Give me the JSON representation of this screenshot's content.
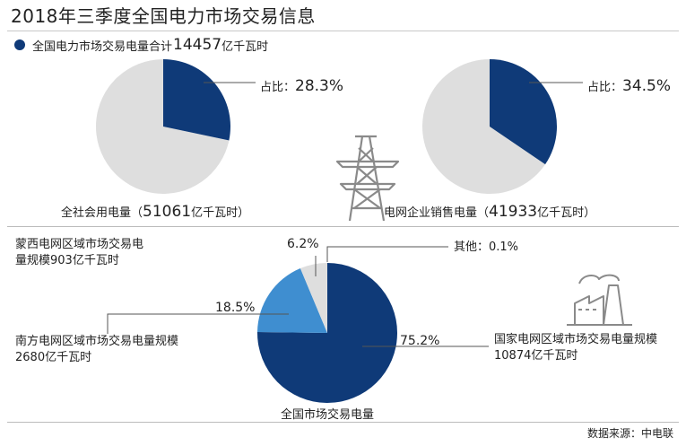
{
  "title": "2018年三季度全国电力市场交易信息",
  "legend": {
    "prefix": "全国电力市场交易电量合计",
    "total": "14457",
    "unit": "亿千瓦时",
    "color": "#0f3a78"
  },
  "colors": {
    "primary": "#0f3a78",
    "secondary": "#3f8ed0",
    "rest": "#dedede",
    "line": "#555555"
  },
  "chart_data": [
    {
      "type": "pie",
      "name": "全社会用电量",
      "total_label_prefix": "全社会用电量（",
      "total_value": "51061",
      "total_unit": "亿千瓦时）",
      "share_label": "占比：",
      "share_value": "28.3%",
      "slices": [
        {
          "label": "",
          "value": 28.3
        },
        {
          "label": "",
          "value": 71.7
        }
      ]
    },
    {
      "type": "pie",
      "name": "电网企业销售电量",
      "total_label_prefix": "电网企业销售电量（",
      "total_value": "41933",
      "total_unit": "亿千瓦时）",
      "share_label": "占比：",
      "share_value": "34.5%",
      "slices": [
        {
          "label": "",
          "value": 34.5
        },
        {
          "label": "",
          "value": 65.5
        }
      ]
    },
    {
      "type": "pie",
      "name": "全国市场交易电量",
      "center_label": "全国市场交易电量",
      "slices": [
        {
          "label_lines": [
            "国家电网区域市场交易电量规模",
            "10874亿千瓦时"
          ],
          "value": 75.2,
          "pct": "75.2%"
        },
        {
          "label_lines": [
            "南方电网区域市场交易电量规模",
            "2680亿千瓦时"
          ],
          "value": 18.5,
          "pct": "18.5%"
        },
        {
          "label_lines": [
            "蒙西电网区域市场交易电",
            "量规模903亿千瓦时"
          ],
          "value": 6.2,
          "pct": "6.2%"
        },
        {
          "label_lines": [
            "其他：0.1%"
          ],
          "value": 0.1,
          "pct": ""
        }
      ]
    }
  ],
  "source": "数据来源：中电联"
}
